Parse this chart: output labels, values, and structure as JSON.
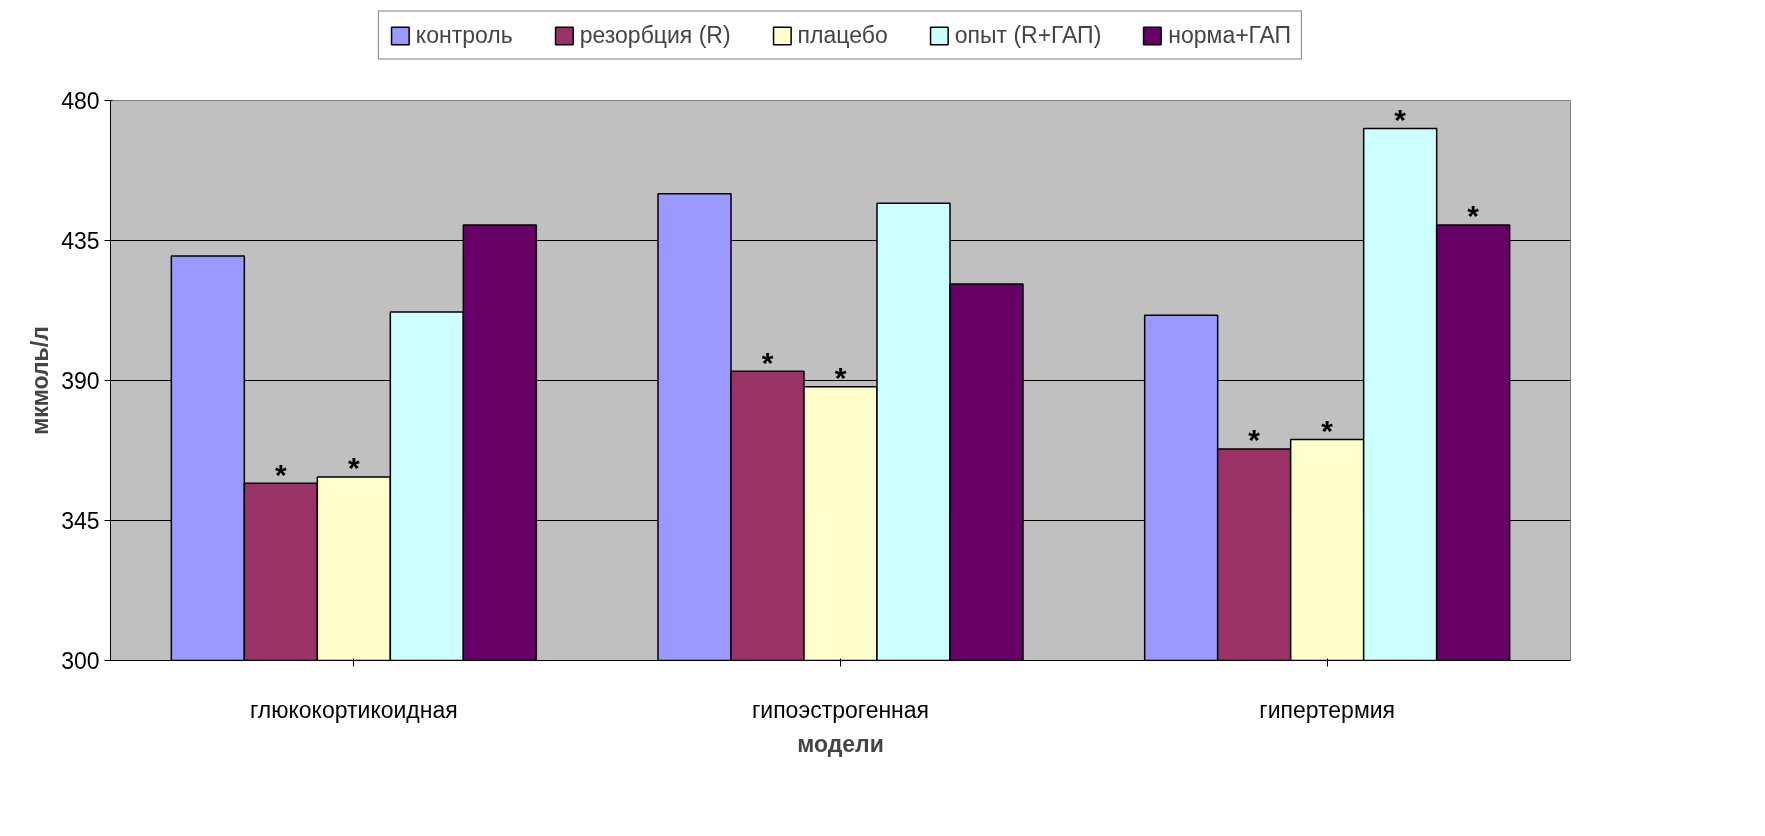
{
  "chart_data": {
    "type": "bar",
    "xlabel": "модели",
    "ylabel": "мкмоль/л",
    "categories": [
      "глюкокортикоидная",
      "гипоэстрогенная",
      "гипертермия"
    ],
    "series": [
      {
        "name": "контроль",
        "color": "#9999ff",
        "values": [
          430,
          450,
          411
        ]
      },
      {
        "name": "резорбция (R)",
        "color": "#993366",
        "values": [
          357,
          393,
          368
        ],
        "value_labels": [
          "*",
          "*",
          "*"
        ]
      },
      {
        "name": "плацебо",
        "color": "#ffffcc",
        "values": [
          359,
          388,
          371
        ],
        "value_labels": [
          "*",
          "*",
          "*"
        ]
      },
      {
        "name": "опыт (R+ГАП)",
        "color": "#ccffff",
        "values": [
          412,
          447,
          471
        ],
        "value_labels": [
          null,
          null,
          "*"
        ]
      },
      {
        "name": "норма+ГАП",
        "color": "#660066",
        "values": [
          440,
          421,
          440
        ],
        "value_labels": [
          null,
          null,
          "*"
        ]
      }
    ],
    "ylim": [
      300,
      480
    ],
    "yticks": [
      300,
      345,
      390,
      435,
      480
    ],
    "grid": "y",
    "legend": "top"
  }
}
